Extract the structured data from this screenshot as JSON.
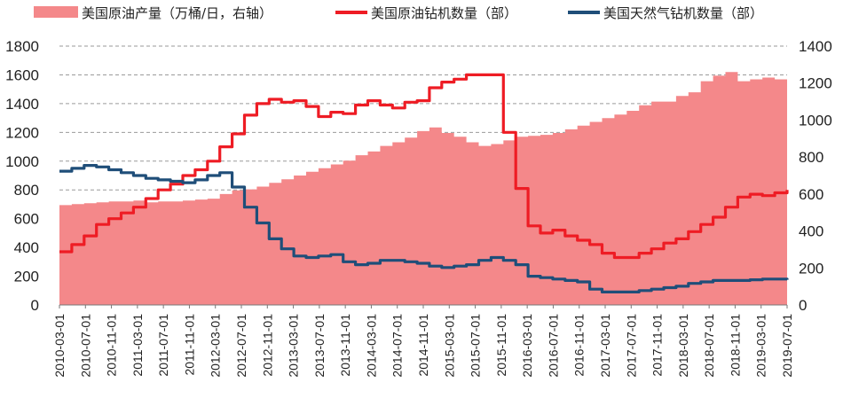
{
  "chart_data": {
    "type": "area+line",
    "title": "",
    "grid": true,
    "legend_position": "top",
    "x_tick_labels": [
      "2010-03-01",
      "2010-07-01",
      "2010-11-01",
      "2011-03-01",
      "2011-07-01",
      "2011-11-01",
      "2012-03-01",
      "2012-07-01",
      "2012-11-01",
      "2013-03-01",
      "2013-07-01",
      "2013-11-01",
      "2014-03-01",
      "2014-07-01",
      "2014-11-01",
      "2015-03-01",
      "2015-07-01",
      "2015-11-01",
      "2016-03-01",
      "2016-07-01",
      "2016-11-01",
      "2017-03-01",
      "2017-07-01",
      "2017-11-01",
      "2018-03-01",
      "2018-07-01",
      "2018-11-01",
      "2019-03-01",
      "2019-07-01"
    ],
    "left_axis": {
      "ylim": [
        0,
        1800
      ],
      "ticks": [
        0,
        200,
        400,
        600,
        800,
        1000,
        1200,
        1400,
        1600,
        1800
      ]
    },
    "right_axis": {
      "ylim": [
        0,
        1400
      ],
      "ticks": [
        0,
        200,
        400,
        600,
        800,
        1000,
        1200,
        1400
      ]
    },
    "series": [
      {
        "name": "美国原油产量（万桶/日，右轴）",
        "type": "area",
        "axis": "right",
        "color": "#f4888a",
        "values": [
          540,
          545,
          550,
          555,
          560,
          560,
          565,
          555,
          560,
          560,
          565,
          570,
          575,
          600,
          620,
          625,
          640,
          660,
          680,
          700,
          720,
          740,
          760,
          780,
          810,
          830,
          860,
          880,
          905,
          940,
          960,
          930,
          910,
          880,
          860,
          870,
          890,
          910,
          915,
          920,
          930,
          950,
          970,
          990,
          1010,
          1030,
          1050,
          1080,
          1100,
          1100,
          1130,
          1150,
          1210,
          1240,
          1260,
          1210,
          1220,
          1230,
          1220,
          1200
        ]
      },
      {
        "name": "美国原油钻机数量（部）",
        "type": "line",
        "axis": "left",
        "color": "#ee1c24",
        "values": [
          370,
          420,
          480,
          560,
          600,
          640,
          680,
          740,
          800,
          840,
          900,
          940,
          1000,
          1100,
          1190,
          1320,
          1400,
          1430,
          1410,
          1420,
          1380,
          1310,
          1340,
          1330,
          1390,
          1420,
          1390,
          1370,
          1410,
          1420,
          1510,
          1550,
          1570,
          1600,
          1600,
          1600,
          1200,
          810,
          550,
          500,
          520,
          480,
          450,
          420,
          360,
          330,
          330,
          360,
          390,
          430,
          460,
          510,
          560,
          610,
          680,
          750,
          770,
          760,
          780,
          800
        ]
      },
      {
        "name": "美国天然气钻机数量（部）",
        "type": "line",
        "axis": "left",
        "color": "#1f4e79",
        "values": [
          930,
          950,
          970,
          960,
          940,
          920,
          900,
          880,
          870,
          860,
          850,
          870,
          900,
          920,
          820,
          680,
          570,
          460,
          390,
          340,
          330,
          340,
          350,
          300,
          280,
          290,
          310,
          310,
          300,
          290,
          270,
          260,
          270,
          280,
          310,
          330,
          310,
          280,
          200,
          190,
          180,
          170,
          160,
          110,
          90,
          90,
          90,
          100,
          110,
          120,
          130,
          150,
          160,
          170,
          170,
          170,
          175,
          180,
          180,
          175
        ]
      }
    ]
  }
}
